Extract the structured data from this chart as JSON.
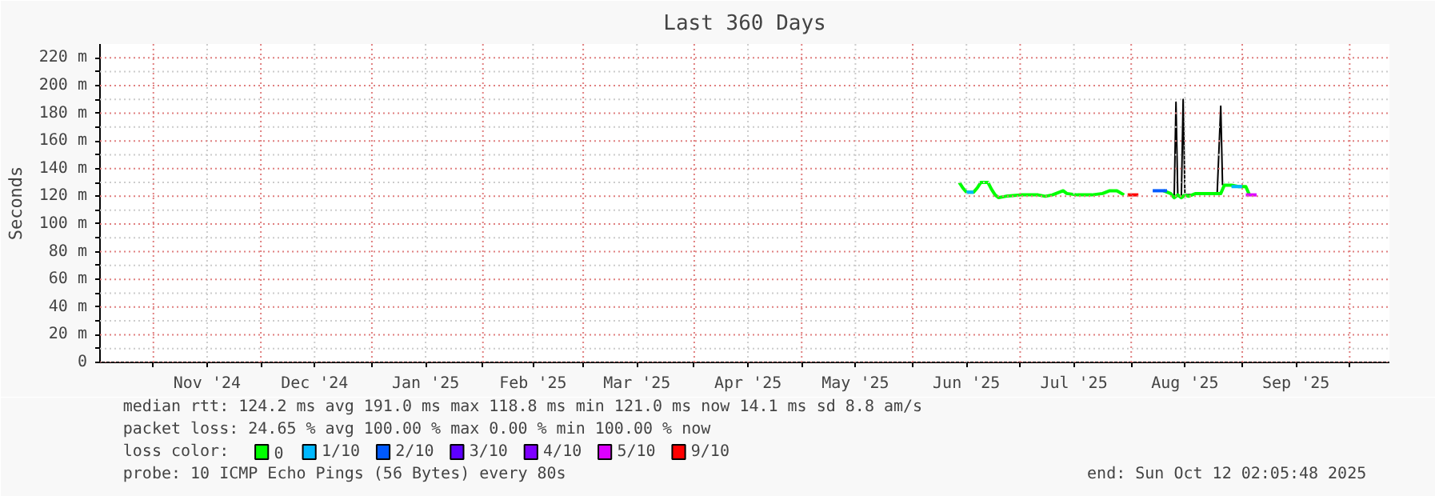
{
  "chart_data": {
    "type": "line",
    "title": "Last 360 Days",
    "ylabel": "Seconds",
    "xlim": [
      "2024-10-17T02:05",
      "2025-10-12T02:05"
    ],
    "xticks": [
      {
        "value": "2024-11-01",
        "label": null
      },
      {
        "value": "2024-11-16",
        "label": "Nov '24"
      },
      {
        "value": "2024-12-01",
        "label": null
      },
      {
        "value": "2024-12-16",
        "label": "Dec '24"
      },
      {
        "value": "2025-01-01",
        "label": null
      },
      {
        "value": "2025-01-16",
        "label": "Jan '25"
      },
      {
        "value": "2025-02-01",
        "label": null
      },
      {
        "value": "2025-02-15",
        "label": "Feb '25"
      },
      {
        "value": "2025-03-01",
        "label": null
      },
      {
        "value": "2025-03-16",
        "label": "Mar '25"
      },
      {
        "value": "2025-04-01",
        "label": null
      },
      {
        "value": "2025-04-16",
        "label": "Apr '25"
      },
      {
        "value": "2025-05-01",
        "label": null
      },
      {
        "value": "2025-05-16",
        "label": "May '25"
      },
      {
        "value": "2025-06-01",
        "label": null
      },
      {
        "value": "2025-06-16",
        "label": "Jun '25"
      },
      {
        "value": "2025-07-01",
        "label": null
      },
      {
        "value": "2025-07-16",
        "label": "Jul '25"
      },
      {
        "value": "2025-08-01",
        "label": null
      },
      {
        "value": "2025-08-16",
        "label": "Aug '25"
      },
      {
        "value": "2025-09-01",
        "label": null
      },
      {
        "value": "2025-09-16",
        "label": "Sep '25"
      },
      {
        "value": "2025-10-01",
        "label": null
      }
    ],
    "ylim": [
      0,
      230
    ],
    "yticks": [
      0,
      {
        "value": 10,
        "label": null
      },
      {
        "value": 20,
        "label": "20 m"
      },
      {
        "value": 30,
        "label": null
      },
      {
        "value": 40,
        "label": "40 m"
      },
      {
        "value": 50,
        "label": null
      },
      {
        "value": 60,
        "label": "60 m"
      },
      {
        "value": 70,
        "label": null
      },
      {
        "value": 80,
        "label": "80 m"
      },
      {
        "value": 90,
        "label": null
      },
      {
        "value": 100,
        "label": "100 m"
      },
      {
        "value": 110,
        "label": null
      },
      {
        "value": 120,
        "label": "120 m"
      },
      {
        "value": 130,
        "label": null
      },
      {
        "value": 140,
        "label": "140 m"
      },
      {
        "value": 150,
        "label": null
      },
      {
        "value": 160,
        "label": "160 m"
      },
      {
        "value": 170,
        "label": null
      },
      {
        "value": 180,
        "label": "180 m"
      },
      {
        "value": 190,
        "label": null
      },
      {
        "value": 200,
        "label": "200 m"
      },
      {
        "value": 210,
        "label": null
      },
      {
        "value": 220,
        "label": "220 m"
      }
    ],
    "grid": true,
    "legend": "bottom",
    "legend_title": "loss color:",
    "series": [
      {
        "type": "line",
        "color": "#000000",
        "x": [
          "2025-08-12",
          "2025-08-13",
          "2025-08-13T12:00",
          "2025-08-14",
          "2025-08-15",
          "2025-08-15T12:00",
          "2025-08-16",
          "2025-08-25",
          "2025-08-26",
          "2025-08-26T12:00"
        ],
        "values": [
          122,
          119,
          188,
          121,
          119,
          190,
          121,
          122,
          185,
          128
        ]
      },
      {
        "name": "0",
        "color": "#00ff00",
        "x": [
          "2025-06-14",
          "2025-06-15",
          "2025-06-16",
          "2025-06-18",
          "2025-06-19",
          "2025-06-20",
          "2025-06-22",
          "2025-06-23",
          "2025-06-24",
          "2025-06-25",
          "2025-06-27",
          "2025-07-01",
          "2025-07-06",
          "2025-07-08",
          "2025-07-10",
          "2025-07-11",
          "2025-07-13",
          "2025-07-14",
          "2025-07-17",
          "2025-07-21",
          "2025-07-24",
          "2025-07-26",
          "2025-07-28",
          "2025-07-30",
          "2025-08-02",
          "2025-08-05",
          "2025-08-10",
          "2025-08-12",
          "2025-08-13",
          "2025-08-14",
          "2025-08-15",
          "2025-08-16",
          "2025-08-17",
          "2025-08-19",
          "2025-08-24",
          "2025-08-26",
          "2025-08-27",
          "2025-08-29",
          "2025-08-31",
          "2025-09-02",
          "2025-09-03"
        ],
        "values": [
          130,
          126,
          123,
          123,
          126,
          130,
          130,
          125,
          121,
          119,
          120,
          121,
          121,
          120,
          121,
          122,
          124,
          122,
          121,
          121,
          122,
          124,
          124,
          121,
          null,
          null,
          124,
          122,
          119,
          121,
          119,
          121,
          120,
          122,
          122,
          122,
          128,
          128,
          127,
          127,
          121
        ]
      },
      {
        "name": "1/10",
        "color": "#00b8ff",
        "x": [
          "2025-06-16",
          "2025-06-18",
          "2025-07-01",
          "2025-08-29",
          "2025-09-01"
        ],
        "values": [
          123,
          123,
          null,
          127,
          127
        ]
      },
      {
        "name": "2/10",
        "color": "#0059ff",
        "x": [
          "2025-08-07",
          "2025-08-11"
        ],
        "values": [
          124,
          124
        ]
      },
      {
        "name": "3/10",
        "color": "#5e00ff"
      },
      {
        "name": "4/10",
        "color": "#7e00ff"
      },
      {
        "name": "5/10",
        "color": "#dd00ff",
        "x": [
          "2025-09-02",
          "2025-09-05"
        ],
        "values": [
          121,
          121
        ]
      },
      {
        "name": "9/10",
        "color": "#ff0000",
        "x": [
          "2025-07-31",
          "2025-08-03"
        ],
        "values": [
          121,
          121
        ]
      }
    ],
    "annotations": [
      "median rtt:  124.2 ms avg  191.0 ms max  118.8 ms min  121.0 ms now  14.1 ms sd  8.8   am/s",
      "packet loss: 24.65 % avg  100.00 % max  0.00 % min  100.00 % now",
      "probe:       10 ICMP Echo Pings (56 Bytes) every 80s",
      "end: Sun Oct 12 02:05:48 2025"
    ]
  }
}
